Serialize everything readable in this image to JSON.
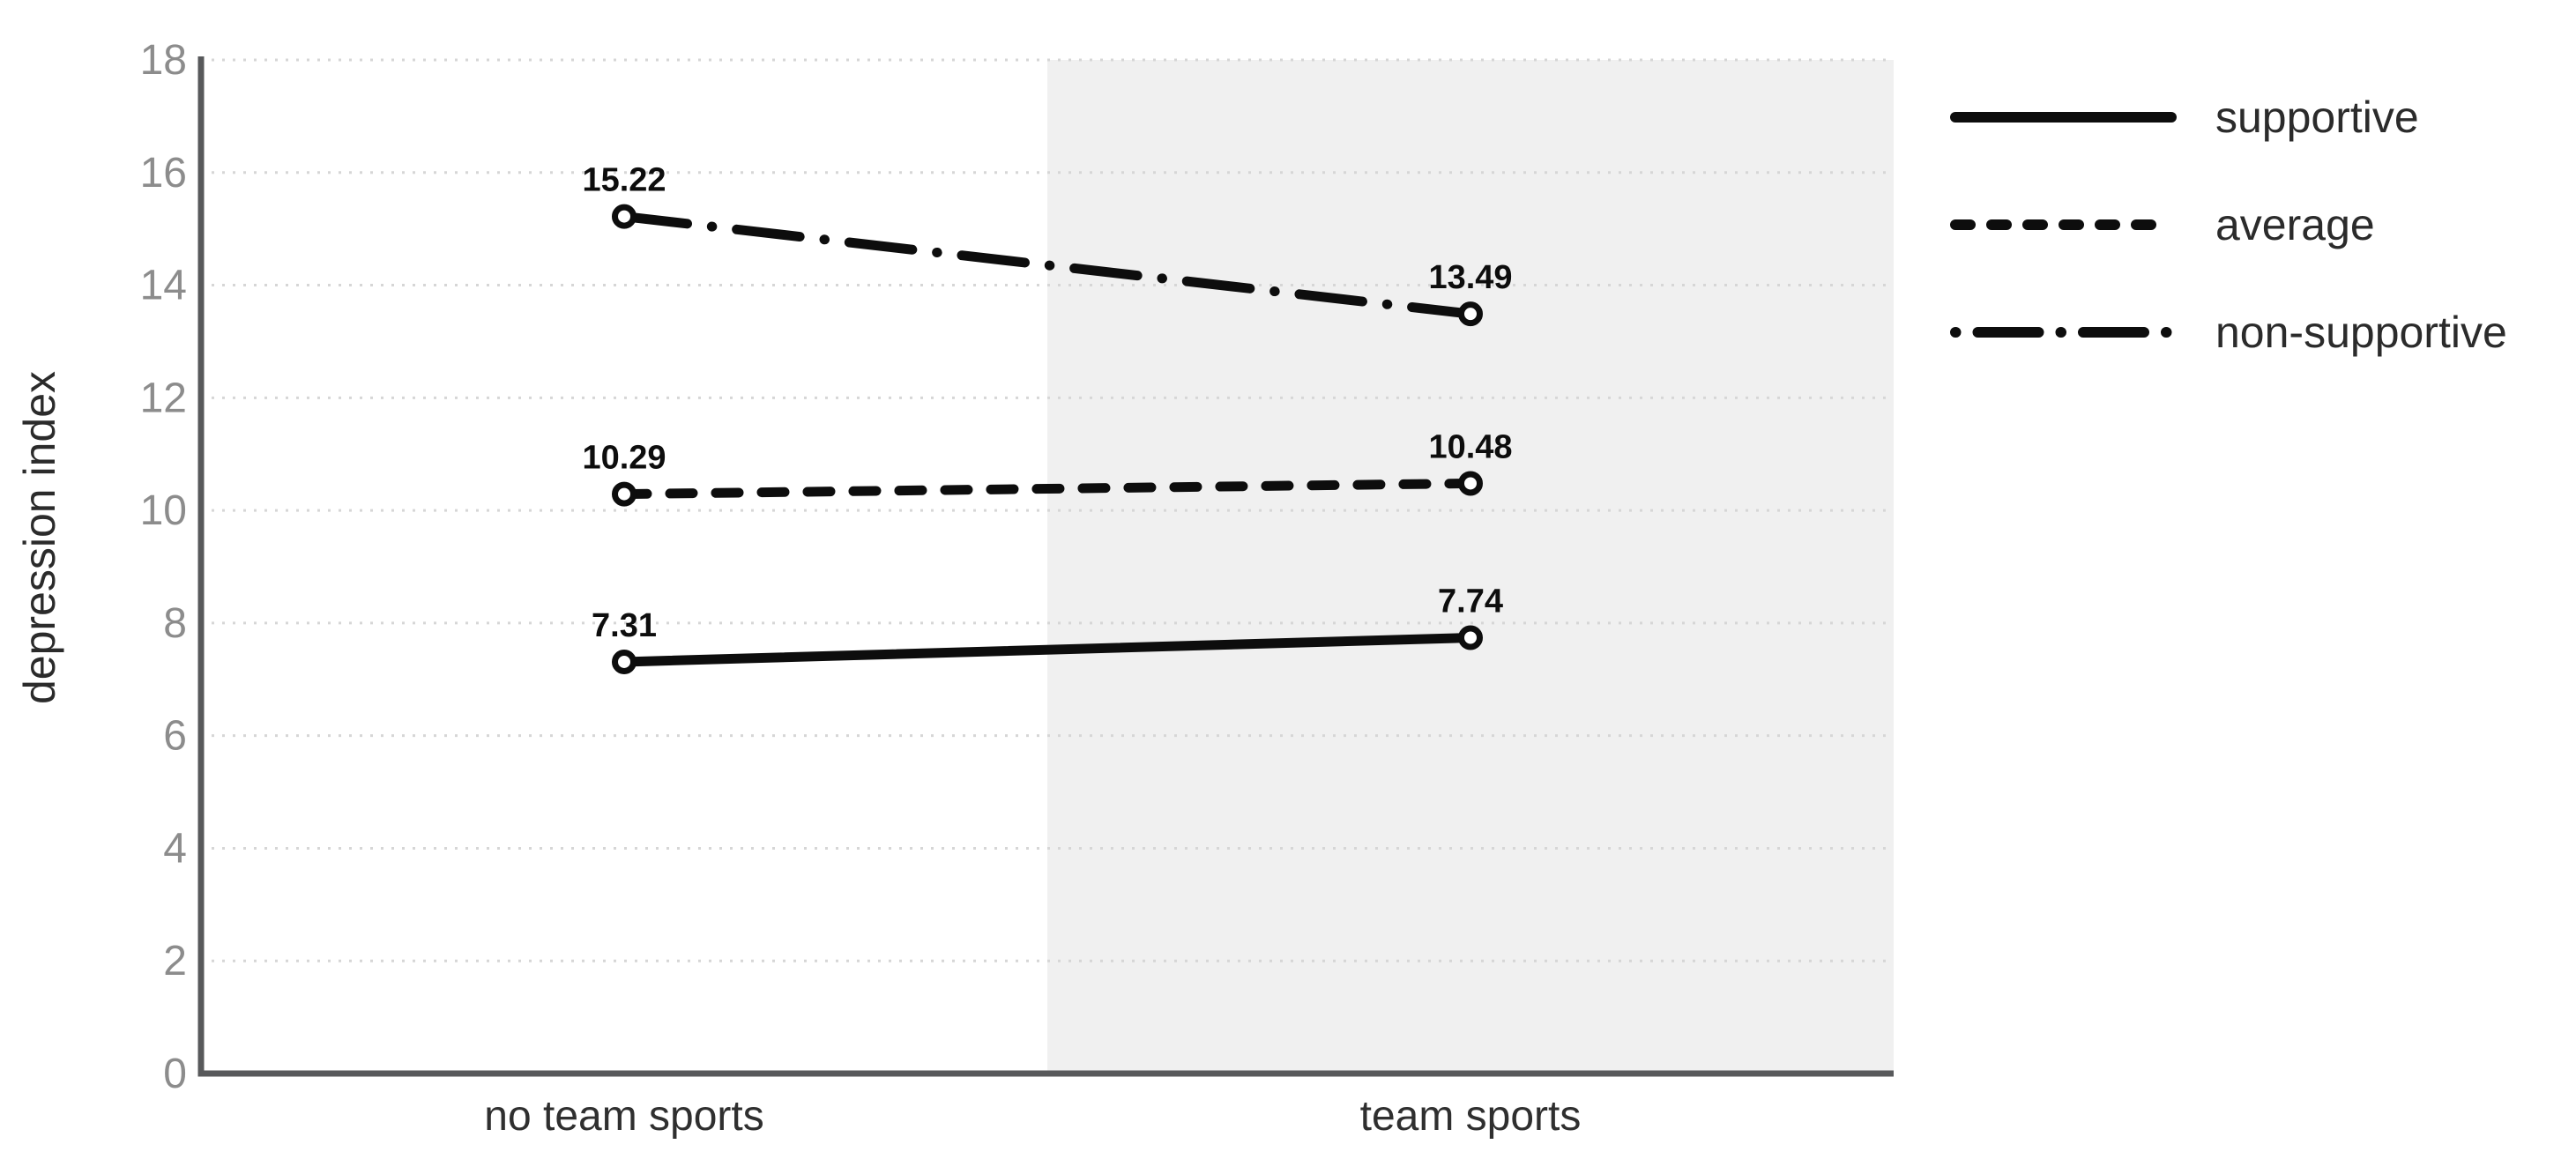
{
  "colors": {
    "background": "#ffffff",
    "shaded_band": "#f0f0f0",
    "gridline": "#d6d6d6",
    "axis_line": "#58595b",
    "tick_label": "#8c8c8c",
    "category_label": "#2f2f2f",
    "legend_label": "#2b2b2b",
    "axis_title": "#2b2b2b",
    "series_line": "#0d0d0d",
    "marker_fill": "#ffffff",
    "data_label": "#0d0d0d"
  },
  "chart_data": {
    "type": "line",
    "title": "",
    "xlabel": "",
    "ylabel": "depression index",
    "ylim": [
      0,
      18
    ],
    "yticks": [
      0,
      2,
      4,
      6,
      8,
      10,
      12,
      14,
      16,
      18
    ],
    "grid": "horizontal-dotted",
    "legend_position": "outside-top-right",
    "shaded_region": {
      "category": "team sports",
      "coverage": "right-half"
    },
    "categories": [
      "no team sports",
      "team sports"
    ],
    "series": [
      {
        "name": "supportive",
        "style": "solid",
        "values": [
          7.31,
          7.74
        ],
        "labels": [
          "7.31",
          "7.74"
        ]
      },
      {
        "name": "average",
        "style": "dashed",
        "values": [
          10.29,
          10.48
        ],
        "labels": [
          "10.29",
          "10.48"
        ]
      },
      {
        "name": "non-supportive",
        "style": "dash-dot",
        "values": [
          15.22,
          13.49
        ],
        "labels": [
          "15.22",
          "13.49"
        ]
      }
    ]
  }
}
